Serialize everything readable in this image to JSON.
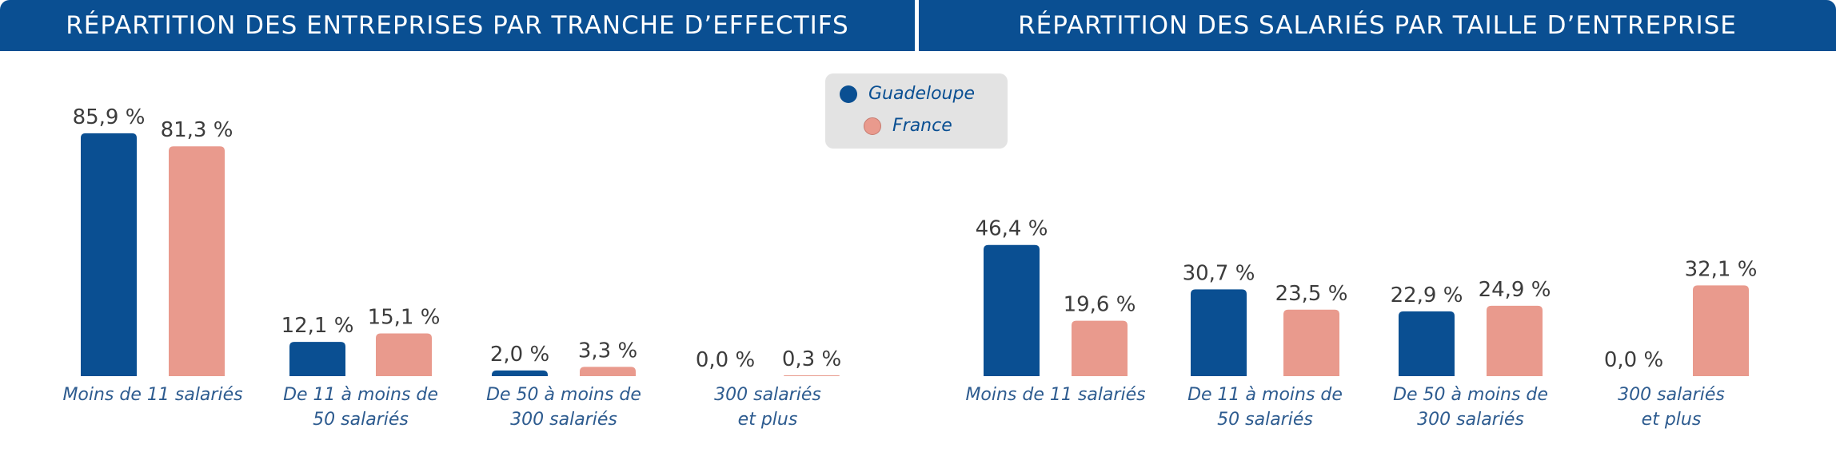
{
  "colors": {
    "guadeloupe": "#0a4f92",
    "france": "#e99a8d",
    "header_bg": "#0a4f92",
    "legend_bg": "#e3e3e3"
  },
  "legend": {
    "items": [
      {
        "label": "Guadeloupe",
        "color": "#0a4f92"
      },
      {
        "label": "France",
        "color": "#e99a8d"
      }
    ]
  },
  "chart_data": [
    {
      "type": "bar",
      "title": "RÉPARTITION DES ENTREPRISES PAR TRANCHE D’EFFECTIFS",
      "categories": [
        [
          "Moins de 11 salariés"
        ],
        [
          "De 11 à moins de",
          "50 salariés"
        ],
        [
          "De 50 à moins de",
          "300 salariés"
        ],
        [
          "300 salariés",
          "et plus"
        ]
      ],
      "series": [
        {
          "name": "Guadeloupe",
          "values": [
            85.9,
            12.1,
            2.0,
            0.0
          ],
          "labels": [
            "85,9 %",
            "12,1 %",
            "2,0 %",
            "0,0 %"
          ]
        },
        {
          "name": "France",
          "values": [
            81.3,
            15.1,
            3.3,
            0.3
          ],
          "labels": [
            "81,3 %",
            "15,1 %",
            "3,3 %",
            "0,3 %"
          ]
        }
      ]
    },
    {
      "type": "bar",
      "title": "RÉPARTITION DES SALARIÉS PAR TAILLE D’ENTREPRISE",
      "categories": [
        [
          "Moins de 11 salariés"
        ],
        [
          "De 11 à moins de",
          "50 salariés"
        ],
        [
          "De 50 à moins de",
          "300 salariés"
        ],
        [
          "300 salariés",
          "et plus"
        ]
      ],
      "series": [
        {
          "name": "Guadeloupe",
          "values": [
            46.4,
            30.7,
            22.9,
            0.0
          ],
          "labels": [
            "46,4 %",
            "30,7 %",
            "22,9 %",
            "0,0 %"
          ]
        },
        {
          "name": "France",
          "values": [
            19.6,
            23.5,
            24.9,
            32.1
          ],
          "labels": [
            "19,6 %",
            "23,5 %",
            "24,9 %",
            "32,1 %"
          ]
        }
      ]
    }
  ]
}
